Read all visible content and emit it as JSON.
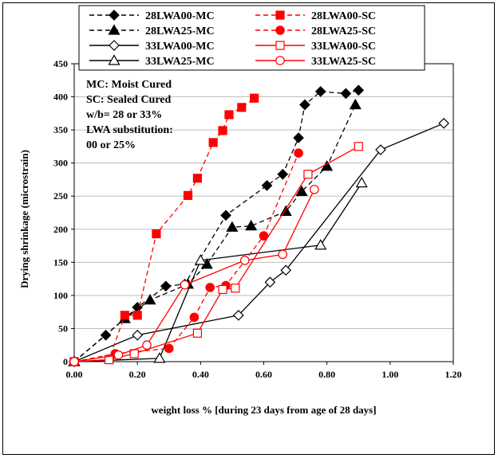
{
  "chart_data": {
    "type": "line",
    "xlabel": "weight loss % [during 23 days from age of 28 days]",
    "ylabel": "Drying shrinkage (microstrain)",
    "xlim": [
      0,
      1.2
    ],
    "ylim": [
      0,
      450
    ],
    "x_ticks": [
      "0.00",
      "0.20",
      "0.40",
      "0.60",
      "0.80",
      "1.00",
      "1.20"
    ],
    "y_ticks": [
      "0",
      "50",
      "100",
      "150",
      "200",
      "250",
      "300",
      "350",
      "400",
      "450"
    ],
    "grid": "y-major",
    "legend_position": "top",
    "annotations": [
      "MC: Moist Cured",
      "SC: Sealed Cured",
      "w/b= 28 or 33%",
      "LWA substitution:",
      " 00 or 25%"
    ],
    "series": [
      {
        "name": "28LWA00-MC",
        "color": "#000000",
        "line": "dashed",
        "marker": "diamond-filled",
        "points": [
          [
            0,
            0
          ],
          [
            0.1,
            40
          ],
          [
            0.2,
            82
          ],
          [
            0.29,
            114
          ],
          [
            0.35,
            117
          ],
          [
            0.48,
            221
          ],
          [
            0.61,
            266
          ],
          [
            0.66,
            283
          ],
          [
            0.71,
            338
          ],
          [
            0.73,
            388
          ],
          [
            0.78,
            408
          ],
          [
            0.86,
            405
          ],
          [
            0.9,
            410
          ]
        ]
      },
      {
        "name": "28LWA25-MC",
        "color": "#000000",
        "line": "dashed",
        "marker": "triangle-filled",
        "points": [
          [
            0,
            0
          ],
          [
            0.16,
            65
          ],
          [
            0.24,
            93
          ],
          [
            0.36,
            117
          ],
          [
            0.42,
            147
          ],
          [
            0.5,
            203
          ],
          [
            0.56,
            205
          ],
          [
            0.67,
            227
          ],
          [
            0.72,
            257
          ],
          [
            0.8,
            295
          ],
          [
            0.89,
            388
          ]
        ]
      },
      {
        "name": "33LWA00-MC",
        "color": "#000000",
        "line": "solid",
        "marker": "diamond-open",
        "points": [
          [
            0,
            0
          ],
          [
            0.2,
            40
          ],
          [
            0.52,
            70
          ],
          [
            0.62,
            120
          ],
          [
            0.67,
            138
          ],
          [
            0.97,
            320
          ],
          [
            1.17,
            360
          ]
        ]
      },
      {
        "name": "33LWA25-MC",
        "color": "#000000",
        "line": "solid",
        "marker": "triangle-open",
        "points": [
          [
            0,
            0
          ],
          [
            0.27,
            5
          ],
          [
            0.4,
            153
          ],
          [
            0.78,
            176
          ],
          [
            0.91,
            270
          ]
        ]
      },
      {
        "name": "28LWA00-SC",
        "color": "#ff0000",
        "line": "dashed",
        "marker": "square-filled",
        "points": [
          [
            0,
            0
          ],
          [
            0.11,
            3
          ],
          [
            0.16,
            70
          ],
          [
            0.2,
            70
          ],
          [
            0.26,
            193
          ],
          [
            0.36,
            251
          ],
          [
            0.39,
            277
          ],
          [
            0.44,
            331
          ],
          [
            0.47,
            349
          ],
          [
            0.49,
            373
          ],
          [
            0.53,
            384
          ],
          [
            0.57,
            398
          ]
        ]
      },
      {
        "name": "28LWA25-SC",
        "color": "#ff0000",
        "line": "dashed",
        "marker": "circle-filled",
        "points": [
          [
            0,
            0
          ],
          [
            0.13,
            12
          ],
          [
            0.3,
            20
          ],
          [
            0.38,
            67
          ],
          [
            0.43,
            112
          ],
          [
            0.48,
            115
          ],
          [
            0.6,
            190
          ],
          [
            0.71,
            315
          ]
        ]
      },
      {
        "name": "33LWA00-SC",
        "color": "#ff0000",
        "line": "solid",
        "marker": "square-open",
        "points": [
          [
            0,
            0
          ],
          [
            0.11,
            3
          ],
          [
            0.19,
            12
          ],
          [
            0.39,
            43
          ],
          [
            0.47,
            109
          ],
          [
            0.51,
            111
          ],
          [
            0.74,
            283
          ],
          [
            0.9,
            325
          ]
        ]
      },
      {
        "name": "33LWA25-SC",
        "color": "#ff0000",
        "line": "solid",
        "marker": "circle-open",
        "points": [
          [
            0,
            0
          ],
          [
            0.14,
            10
          ],
          [
            0.23,
            25
          ],
          [
            0.35,
            116
          ],
          [
            0.54,
            153
          ],
          [
            0.66,
            162
          ],
          [
            0.76,
            260
          ]
        ]
      }
    ]
  }
}
